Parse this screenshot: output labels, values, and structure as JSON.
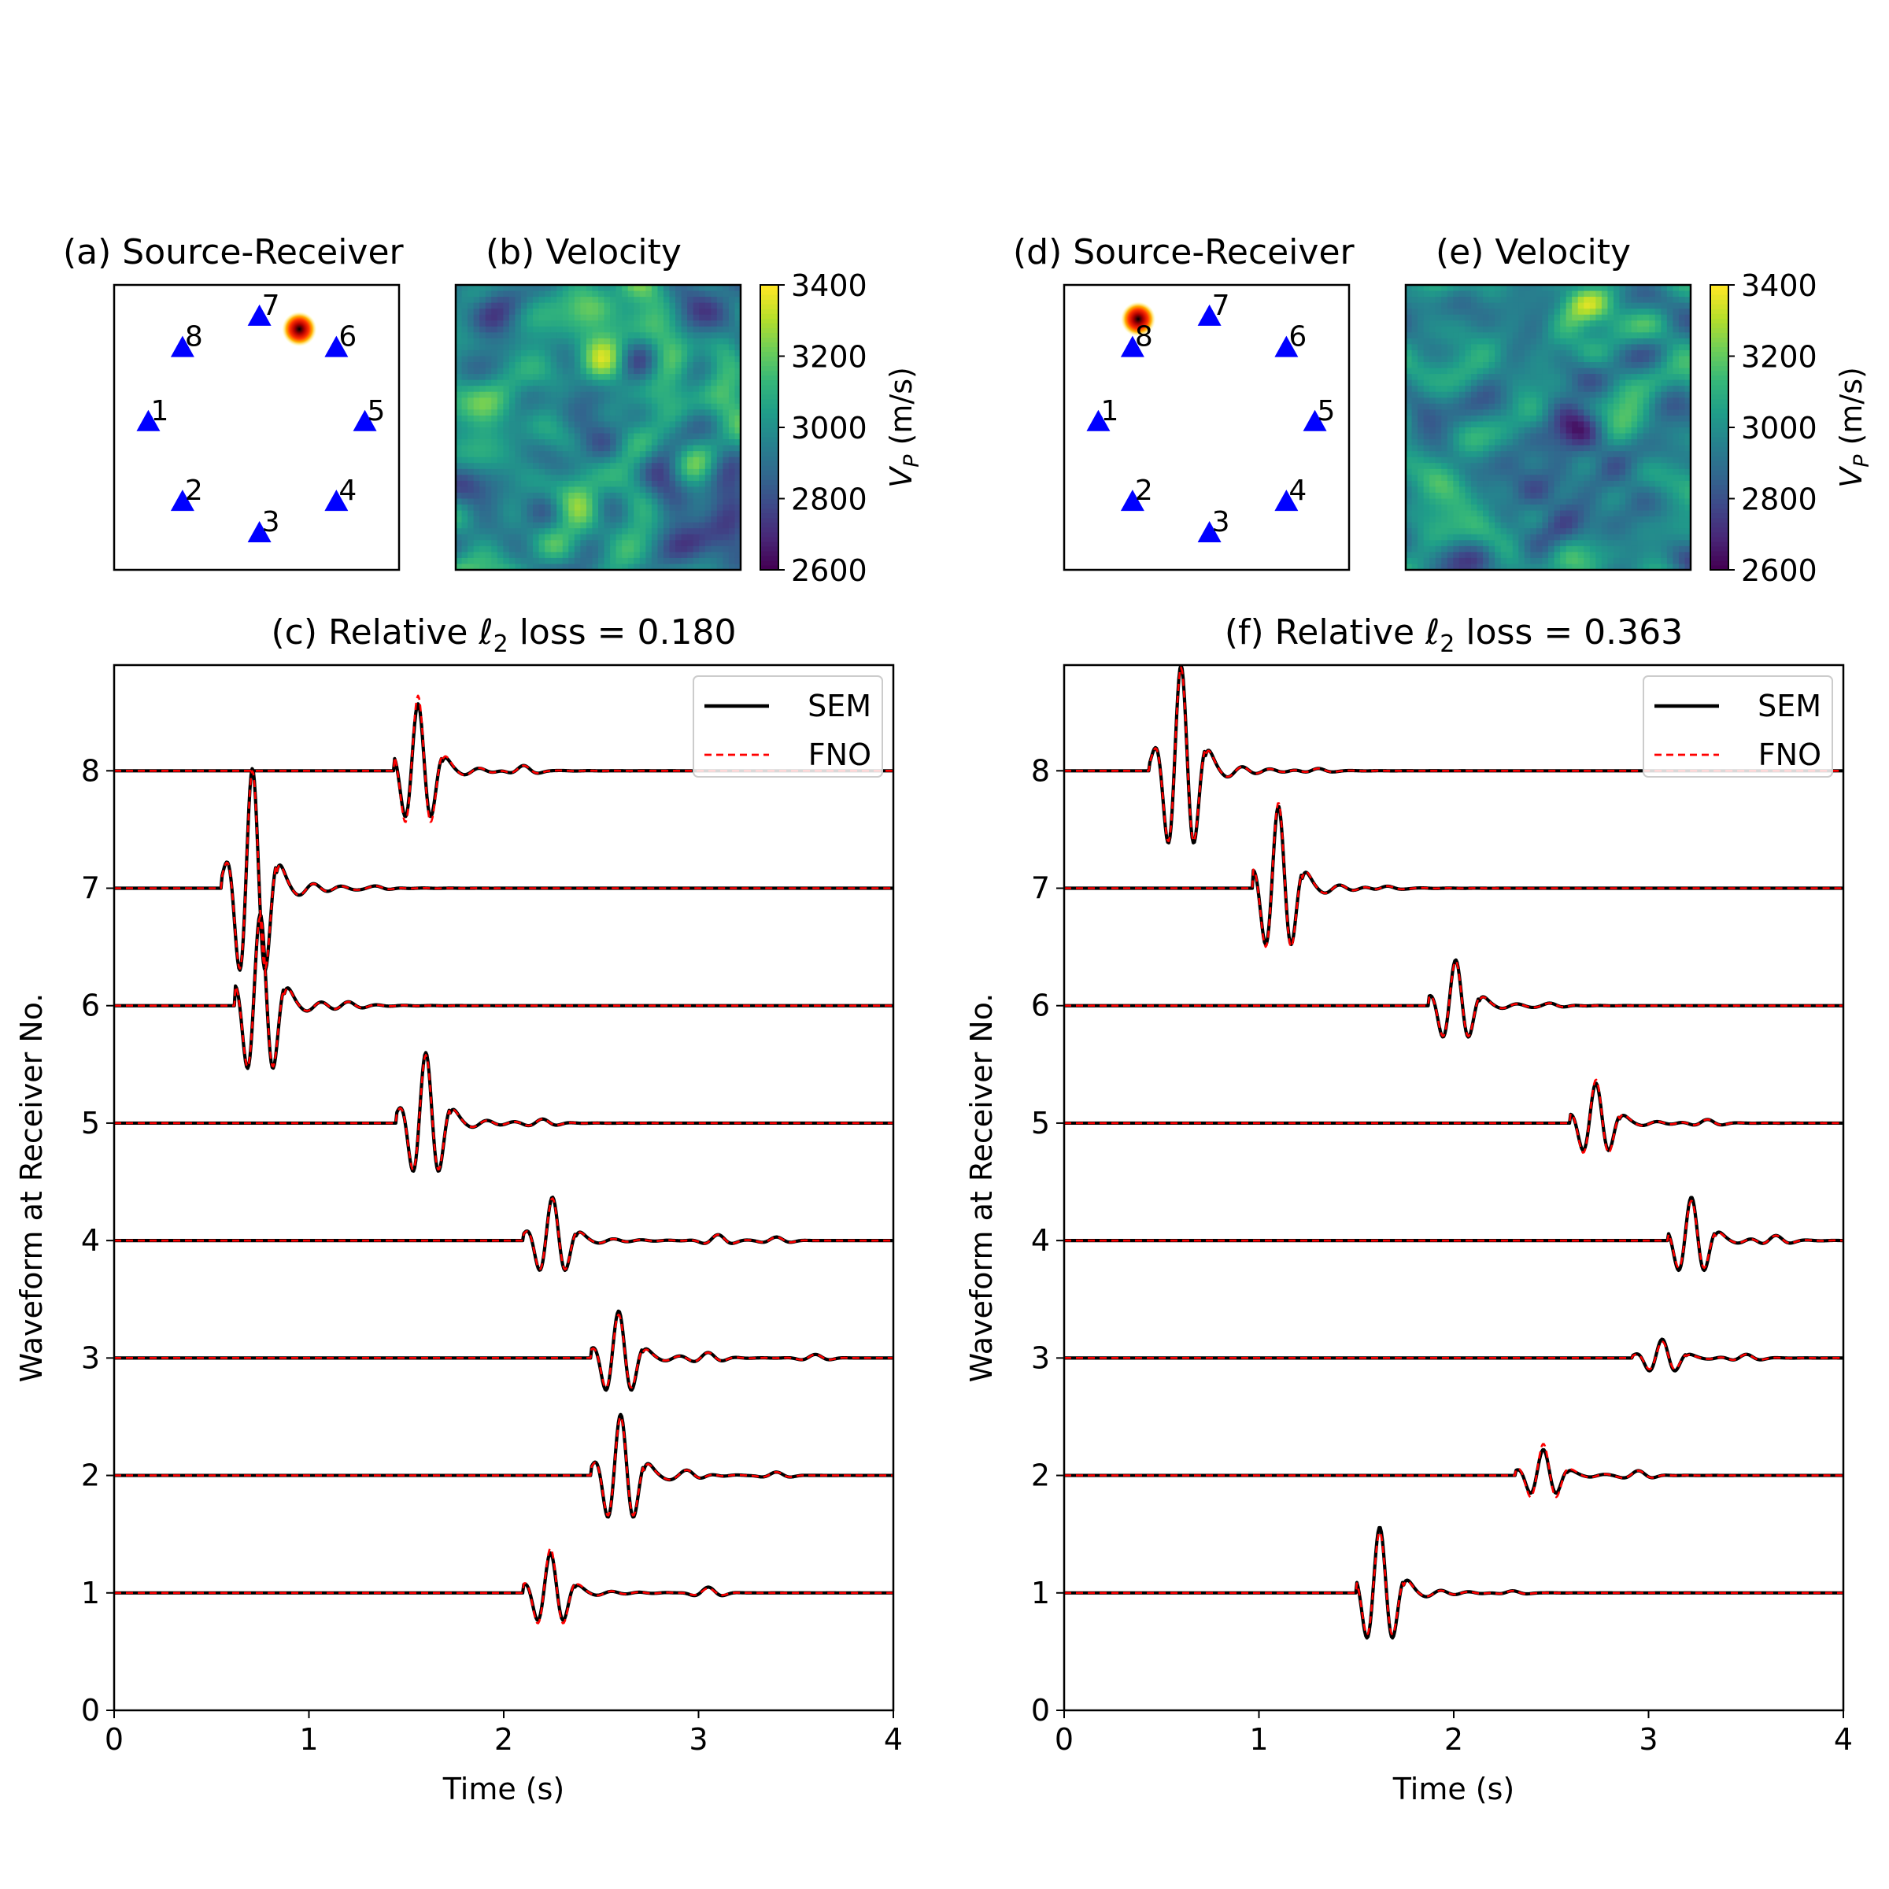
{
  "figure": {
    "colorbar_label": "V",
    "colorbar_label_sub": "P",
    "colorbar_label_units": " (m/s)",
    "colorbar_ticks": [
      "2600",
      "2800",
      "3000",
      "3200",
      "3400"
    ],
    "receiver_labels": [
      "1",
      "2",
      "3",
      "4",
      "5",
      "6",
      "7",
      "8"
    ],
    "colors": {
      "receiver": "#0000ff",
      "sem": "#000000",
      "fno": "#ff0000",
      "viridis": [
        "#440154",
        "#482878",
        "#3e4989",
        "#31688e",
        "#26828e",
        "#1f9e89",
        "#35b779",
        "#6ece58",
        "#b5de2b",
        "#fde725"
      ]
    }
  },
  "panels": [
    {
      "source_title": "(a) Source-Receiver",
      "velocity_title": "(b) Velocity",
      "source_position": "between receivers 7 and 6",
      "velocity_description": "random heterogeneous field, higher velocities (yellow) top-center and bottom-left, low velocities in bottom-right corner",
      "wave_title_prefix": "(c) Relative ",
      "wave_title_ell": "ℓ",
      "wave_title_sub": "2",
      "wave_title_suffix": " loss = 0.180"
    },
    {
      "source_title": "(d) Source-Receiver",
      "velocity_title": "(e) Velocity",
      "source_position": "near receiver 8",
      "velocity_description": "random heterogeneous field with a pronounced low-velocity anomaly in the center extending to lower-right",
      "wave_title_prefix": "(f) Relative ",
      "wave_title_ell": "ℓ",
      "wave_title_sub": "2",
      "wave_title_suffix": " loss = 0.363"
    }
  ],
  "chart_data": [
    {
      "type": "line",
      "title": "(c) Relative ℓ2 loss = 0.180",
      "xlabel": "Time (s)",
      "ylabel": "Waveform at Receiver No.",
      "xlim": [
        0,
        4
      ],
      "ylim": [
        0,
        8.9
      ],
      "xticks": [
        "0",
        "1",
        "2",
        "3",
        "4"
      ],
      "yticks": [
        "0",
        "1",
        "2",
        "3",
        "4",
        "5",
        "6",
        "7",
        "8"
      ],
      "legend": {
        "position": "top-right",
        "entries": [
          "SEM",
          "FNO"
        ]
      },
      "series": [
        {
          "name": "SEM",
          "traces": [
            {
              "receiver": 1,
              "arrival": 2.1,
              "peak": 2.24,
              "amp": 0.34,
              "coda": [
                [
                  3.05,
                  0.05
                ]
              ]
            },
            {
              "receiver": 2,
              "arrival": 2.45,
              "peak": 2.6,
              "amp": 0.52,
              "coda": [
                [
                  2.95,
                  0.04
                ],
                [
                  3.4,
                  0.03
                ]
              ]
            },
            {
              "receiver": 3,
              "arrival": 2.45,
              "peak": 2.59,
              "amp": 0.4,
              "coda": [
                [
                  3.05,
                  0.04
                ],
                [
                  3.6,
                  0.03
                ]
              ]
            },
            {
              "receiver": 4,
              "arrival": 2.1,
              "peak": 2.25,
              "amp": 0.37,
              "coda": [
                [
                  3.1,
                  0.05
                ],
                [
                  3.4,
                  0.03
                ]
              ]
            },
            {
              "receiver": 5,
              "arrival": 1.45,
              "peak": 1.6,
              "amp": 0.6,
              "coda": [
                [
                  2.2,
                  0.03
                ]
              ]
            },
            {
              "receiver": 6,
              "arrival": 0.62,
              "peak": 0.75,
              "amp": 0.78,
              "coda": [
                [
                  1.2,
                  0.02
                ]
              ]
            },
            {
              "receiver": 7,
              "arrival": 0.55,
              "peak": 0.71,
              "amp": 1.02,
              "coda": [
                [
                  1.35,
                  0.02
                ]
              ]
            },
            {
              "receiver": 8,
              "arrival": 1.44,
              "peak": 1.56,
              "amp": 0.57,
              "coda": [
                [
                  2.1,
                  0.05
                ]
              ]
            }
          ]
        },
        {
          "name": "FNO",
          "traces": [
            {
              "receiver": 1,
              "arrival": 2.1,
              "peak": 2.24,
              "amp": 0.38,
              "coda": [
                [
                  3.05,
                  0.04
                ]
              ]
            },
            {
              "receiver": 2,
              "arrival": 2.45,
              "peak": 2.6,
              "amp": 0.5,
              "coda": [
                [
                  2.95,
                  0.04
                ],
                [
                  3.4,
                  0.03
                ]
              ]
            },
            {
              "receiver": 3,
              "arrival": 2.45,
              "peak": 2.59,
              "amp": 0.37,
              "coda": [
                [
                  3.05,
                  0.04
                ],
                [
                  3.6,
                  0.03
                ]
              ]
            },
            {
              "receiver": 4,
              "arrival": 2.1,
              "peak": 2.25,
              "amp": 0.36,
              "coda": [
                [
                  3.1,
                  0.05
                ],
                [
                  3.4,
                  0.03
                ]
              ]
            },
            {
              "receiver": 5,
              "arrival": 1.45,
              "peak": 1.6,
              "amp": 0.58,
              "coda": [
                [
                  2.2,
                  0.03
                ]
              ]
            },
            {
              "receiver": 6,
              "arrival": 0.62,
              "peak": 0.75,
              "amp": 0.76,
              "coda": [
                [
                  1.2,
                  0.02
                ]
              ]
            },
            {
              "receiver": 7,
              "arrival": 0.55,
              "peak": 0.71,
              "amp": 1.0,
              "coda": [
                [
                  1.35,
                  0.02
                ]
              ]
            },
            {
              "receiver": 8,
              "arrival": 1.44,
              "peak": 1.56,
              "amp": 0.64,
              "coda": [
                [
                  2.1,
                  0.05
                ]
              ]
            }
          ]
        }
      ]
    },
    {
      "type": "line",
      "title": "(f) Relative ℓ2 loss = 0.363",
      "xlabel": "Time (s)",
      "ylabel": "Waveform at Receiver No.",
      "xlim": [
        0,
        4
      ],
      "ylim": [
        0,
        8.9
      ],
      "xticks": [
        "0",
        "1",
        "2",
        "3",
        "4"
      ],
      "yticks": [
        "0",
        "1",
        "2",
        "3",
        "4",
        "5",
        "6",
        "7",
        "8"
      ],
      "legend": {
        "position": "top-right",
        "entries": [
          "SEM",
          "FNO"
        ]
      },
      "series": [
        {
          "name": "SEM",
          "traces": [
            {
              "receiver": 1,
              "arrival": 1.5,
              "peak": 1.62,
              "amp": 0.56,
              "coda": [
                [
                  2.3,
                  0.02
                ]
              ]
            },
            {
              "receiver": 2,
              "arrival": 2.32,
              "peak": 2.46,
              "amp": 0.22,
              "coda": [
                [
                  2.95,
                  0.04
                ]
              ]
            },
            {
              "receiver": 3,
              "arrival": 2.92,
              "peak": 3.07,
              "amp": 0.16,
              "coda": [
                [
                  3.5,
                  0.03
                ]
              ]
            },
            {
              "receiver": 4,
              "arrival": 3.1,
              "peak": 3.22,
              "amp": 0.37,
              "coda": [
                [
                  3.65,
                  0.04
                ]
              ]
            },
            {
              "receiver": 5,
              "arrival": 2.6,
              "peak": 2.73,
              "amp": 0.34,
              "coda": [
                [
                  3.3,
                  0.03
                ]
              ]
            },
            {
              "receiver": 6,
              "arrival": 1.87,
              "peak": 2.01,
              "amp": 0.39,
              "coda": [
                [
                  2.5,
                  0.02
                ]
              ]
            },
            {
              "receiver": 7,
              "arrival": 0.97,
              "peak": 1.1,
              "amp": 0.7,
              "coda": [
                [
                  1.65,
                  0.02
                ]
              ]
            },
            {
              "receiver": 8,
              "arrival": 0.44,
              "peak": 0.6,
              "amp": 0.9,
              "coda": [
                [
                  1.3,
                  0.02
                ]
              ]
            }
          ]
        },
        {
          "name": "FNO",
          "traces": [
            {
              "receiver": 1,
              "arrival": 1.5,
              "peak": 1.62,
              "amp": 0.52,
              "coda": [
                [
                  2.3,
                  0.02
                ]
              ]
            },
            {
              "receiver": 2,
              "arrival": 2.32,
              "peak": 2.46,
              "amp": 0.27,
              "coda": [
                [
                  2.95,
                  0.04
                ]
              ]
            },
            {
              "receiver": 3,
              "arrival": 2.92,
              "peak": 3.07,
              "amp": 0.14,
              "coda": [
                [
                  3.5,
                  0.03
                ]
              ]
            },
            {
              "receiver": 4,
              "arrival": 3.1,
              "peak": 3.22,
              "amp": 0.34,
              "coda": [
                [
                  3.65,
                  0.04
                ]
              ]
            },
            {
              "receiver": 5,
              "arrival": 2.6,
              "peak": 2.73,
              "amp": 0.37,
              "coda": [
                [
                  3.3,
                  0.03
                ]
              ]
            },
            {
              "receiver": 6,
              "arrival": 1.87,
              "peak": 2.01,
              "amp": 0.38,
              "coda": [
                [
                  2.5,
                  0.02
                ]
              ]
            },
            {
              "receiver": 7,
              "arrival": 0.97,
              "peak": 1.1,
              "amp": 0.73,
              "coda": [
                [
                  1.65,
                  0.02
                ]
              ]
            },
            {
              "receiver": 8,
              "arrival": 0.44,
              "peak": 0.6,
              "amp": 0.88,
              "coda": [
                [
                  1.3,
                  0.02
                ]
              ]
            }
          ]
        }
      ]
    }
  ]
}
